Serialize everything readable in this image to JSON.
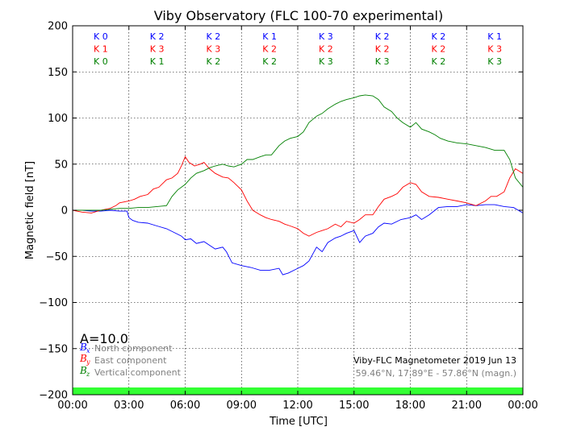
{
  "chart_data": {
    "type": "line",
    "title": "Viby Observatory (FLC 100-70 experimental)",
    "xlabel": "Time [UTC]",
    "ylabel": "Magnetic field [nT]",
    "xlim": [
      0,
      24
    ],
    "ylim": [
      -200,
      200
    ],
    "xticks": [
      0,
      3,
      6,
      9,
      12,
      15,
      18,
      21,
      24
    ],
    "xtick_labels": [
      "00:00",
      "03:00",
      "06:00",
      "09:00",
      "12:00",
      "15:00",
      "18:00",
      "21:00",
      "00:00"
    ],
    "yticks": [
      -200,
      -150,
      -100,
      -50,
      0,
      50,
      100,
      150,
      200
    ],
    "ytick_labels": [
      "−200",
      "−150",
      "−100",
      "−50",
      "0",
      "50",
      "100",
      "150",
      "200"
    ],
    "grid": true,
    "k_index": {
      "rows": [
        {
          "color": "#0000ff",
          "labels": [
            "K 0",
            "K 2",
            "K 2",
            "K 1",
            "K 3",
            "K 2",
            "K 2",
            "K 1"
          ]
        },
        {
          "color": "#ff0000",
          "labels": [
            "K 1",
            "K 3",
            "K 3",
            "K 2",
            "K 2",
            "K 2",
            "K 2",
            "K 3"
          ]
        },
        {
          "color": "#008000",
          "labels": [
            "K 0",
            "K 1",
            "K 2",
            "K 2",
            "K 3",
            "K 3",
            "K 2",
            "K 3"
          ]
        }
      ]
    },
    "activity_label": "A=10.0",
    "legend": {
      "placement": "lower-left",
      "entries": [
        {
          "symbol": "B",
          "subscript": "x",
          "label": "North component",
          "color": "#0000ff"
        },
        {
          "symbol": "B",
          "subscript": "y",
          "label": "East component",
          "color": "#ff0000"
        },
        {
          "symbol": "B",
          "subscript": "z",
          "label": "Vertical component",
          "color": "#008000"
        }
      ]
    },
    "info_line1": "Viby-FLC Magnetometer 2019 Jun 13",
    "info_line2": "59.46°N, 17.89°E - 57.86°N (magn.)",
    "status_bar_color": "#33ff33",
    "series": [
      {
        "name": "North component",
        "color": "#0000ff",
        "x": [
          0,
          0.5,
          1,
          1.5,
          2,
          2.5,
          2.9,
          3.0,
          3.2,
          3.5,
          4,
          4.5,
          5,
          5.5,
          5.8,
          6,
          6.3,
          6.6,
          7,
          7.3,
          7.6,
          8,
          8.2,
          8.5,
          9,
          9.5,
          10,
          10.5,
          11,
          11.2,
          11.5,
          12,
          12.3,
          12.6,
          13,
          13.3,
          13.6,
          14,
          14.3,
          14.6,
          15,
          15.3,
          15.6,
          16,
          16.3,
          16.6,
          17,
          17.5,
          18,
          18.3,
          18.6,
          19,
          19.5,
          20,
          20.5,
          21,
          21.5,
          22,
          22.5,
          23,
          23.5,
          24
        ],
        "y": [
          0,
          0,
          -1,
          -1,
          0,
          -1,
          -1,
          -8,
          -11,
          -13,
          -14,
          -17,
          -20,
          -25,
          -28,
          -32,
          -31,
          -36,
          -34,
          -38,
          -42,
          -40,
          -45,
          -57,
          -60,
          -62,
          -65,
          -65,
          -63,
          -70,
          -68,
          -63,
          -60,
          -55,
          -40,
          -45,
          -35,
          -30,
          -28,
          -25,
          -22,
          -35,
          -28,
          -25,
          -18,
          -14,
          -15,
          -10,
          -8,
          -5,
          -10,
          -5,
          3,
          4,
          4,
          6,
          5,
          6,
          6,
          4,
          3,
          -3
        ]
      },
      {
        "name": "East component",
        "color": "#ff0000",
        "x": [
          0,
          0.5,
          1,
          1.5,
          2,
          2.3,
          2.5,
          3,
          3.3,
          3.6,
          4,
          4.3,
          4.6,
          5,
          5.3,
          5.6,
          5.8,
          6,
          6.2,
          6.5,
          6.8,
          7,
          7.3,
          7.6,
          8,
          8.3,
          8.6,
          9,
          9.3,
          9.6,
          10,
          10.3,
          10.6,
          11,
          11.3,
          11.6,
          12,
          12.3,
          12.6,
          13,
          13.3,
          13.6,
          14,
          14.3,
          14.6,
          15,
          15.3,
          15.6,
          16,
          16.3,
          16.6,
          17,
          17.3,
          17.6,
          18,
          18.3,
          18.6,
          19,
          19.5,
          20,
          20.5,
          21,
          21.5,
          22,
          22.3,
          22.6,
          23,
          23.3,
          23.6,
          24
        ],
        "y": [
          0,
          -2,
          -3,
          0,
          2,
          5,
          8,
          10,
          12,
          15,
          17,
          23,
          25,
          33,
          35,
          40,
          48,
          58,
          52,
          48,
          50,
          52,
          45,
          40,
          36,
          35,
          30,
          22,
          10,
          0,
          -5,
          -8,
          -10,
          -12,
          -15,
          -17,
          -20,
          -25,
          -28,
          -24,
          -22,
          -20,
          -15,
          -18,
          -12,
          -14,
          -10,
          -5,
          -5,
          4,
          12,
          15,
          18,
          25,
          30,
          28,
          20,
          15,
          14,
          12,
          10,
          8,
          5,
          10,
          15,
          15,
          20,
          35,
          45,
          40
        ]
      },
      {
        "name": "Vertical component",
        "color": "#008000",
        "x": [
          0,
          0.5,
          1,
          1.5,
          2,
          2.5,
          3,
          3.5,
          4,
          4.5,
          5,
          5.3,
          5.6,
          6,
          6.3,
          6.6,
          7,
          7.3,
          7.6,
          8,
          8.3,
          8.6,
          9,
          9.3,
          9.6,
          10,
          10.3,
          10.6,
          11,
          11.3,
          11.6,
          12,
          12.3,
          12.6,
          13,
          13.3,
          13.6,
          14,
          14.3,
          14.6,
          15,
          15.3,
          15.6,
          16,
          16.3,
          16.6,
          17,
          17.3,
          17.6,
          18,
          18.3,
          18.6,
          19,
          19.3,
          19.6,
          20,
          20.5,
          21,
          21.5,
          22,
          22.5,
          23,
          23.3,
          23.6,
          24
        ],
        "y": [
          0,
          0,
          0,
          0,
          1,
          2,
          2,
          3,
          3,
          4,
          5,
          15,
          22,
          28,
          35,
          40,
          43,
          46,
          48,
          50,
          48,
          47,
          50,
          55,
          55,
          58,
          60,
          60,
          70,
          75,
          78,
          80,
          85,
          95,
          102,
          105,
          110,
          115,
          118,
          120,
          122,
          124,
          125,
          124,
          120,
          112,
          107,
          100,
          95,
          90,
          95,
          88,
          85,
          82,
          78,
          75,
          73,
          72,
          70,
          68,
          65,
          65,
          55,
          35,
          25
        ]
      }
    ]
  }
}
